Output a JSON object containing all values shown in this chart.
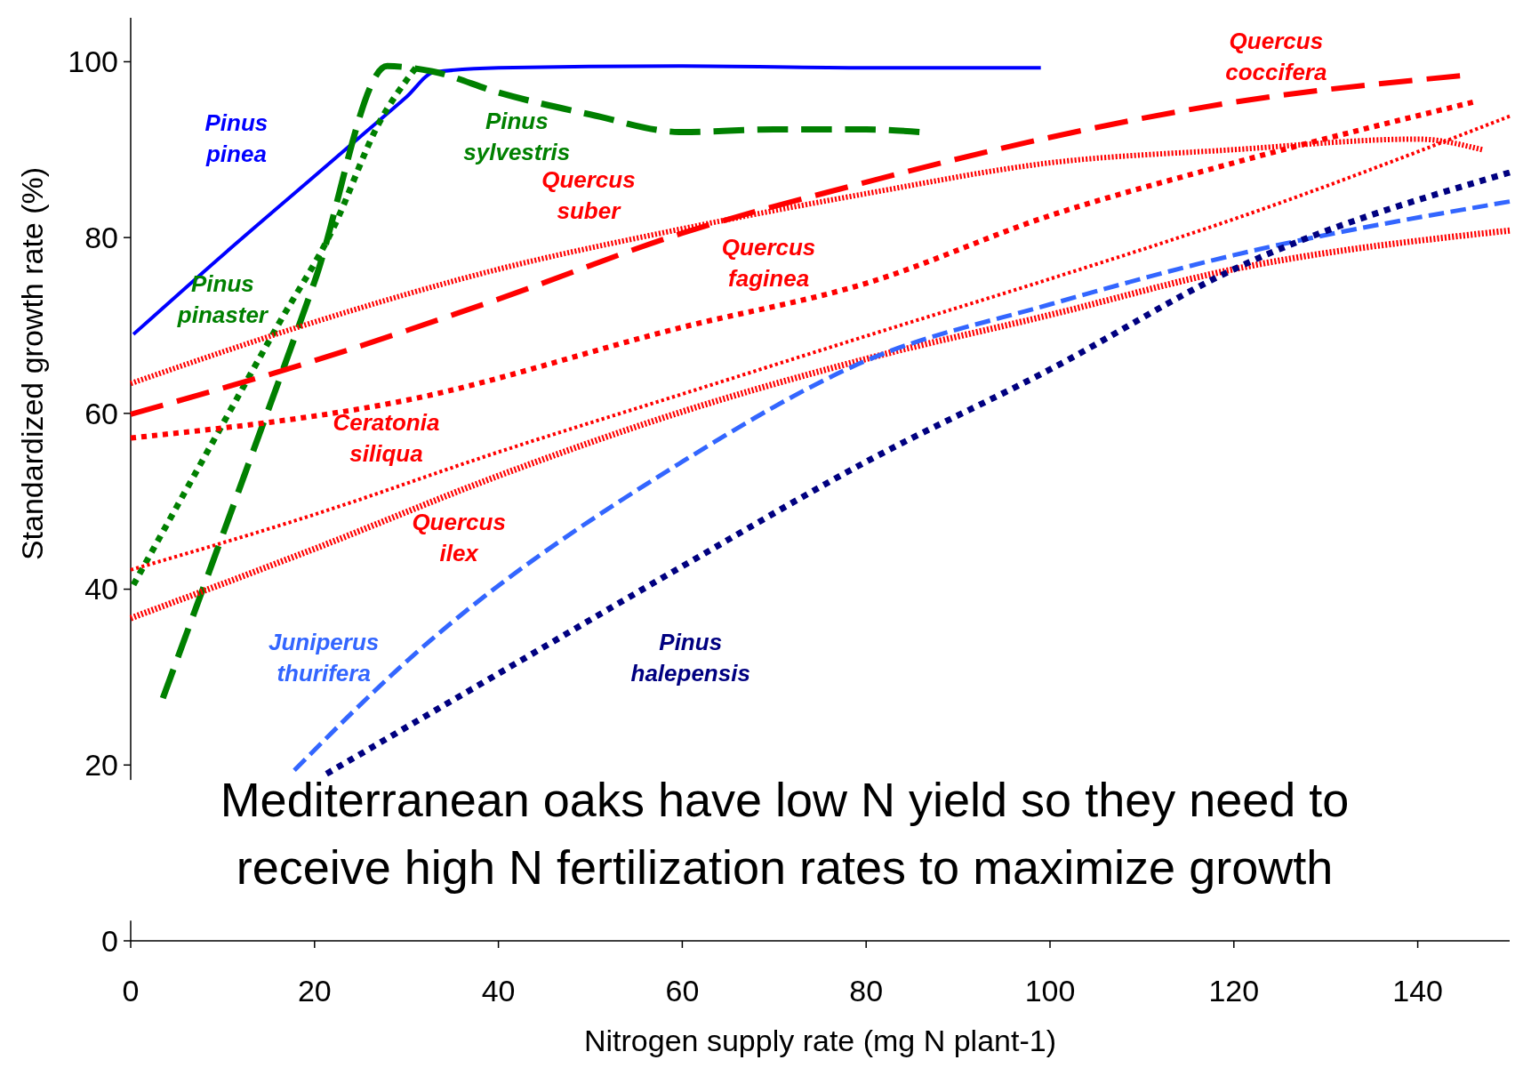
{
  "chart_data": {
    "type": "line",
    "xlabel": "Nitrogen supply rate (mg N plant-1)",
    "ylabel": "Standardized growth rate (%)",
    "xlim": [
      0,
      150
    ],
    "ylim": [
      0,
      105
    ],
    "xticks": [
      0,
      20,
      40,
      60,
      80,
      100,
      120,
      140
    ],
    "yticks": [
      0,
      20,
      40,
      60,
      80,
      100
    ],
    "grid": false,
    "legend": false,
    "marker": "none",
    "annotations": [
      "Mediterranean oaks have low N yield so they need to receive high N fertilization rates to maximize growth"
    ],
    "series": [
      {
        "name": "Pinus pinea",
        "color": "#0000ff",
        "line_style": "solid",
        "x": [
          0.3,
          10,
          20,
          25,
          30,
          33,
          40,
          60,
          80,
          99
        ],
        "values": [
          69,
          78,
          87,
          91.5,
          96,
          98.8,
          99.3,
          99.5,
          99.3,
          99.3
        ]
      },
      {
        "name": "Pinus sylvestris",
        "color": "#008000",
        "line_style": "dashed",
        "x": [
          3.5,
          12.9,
          20,
          27.9,
          32.8,
          40,
          50,
          60,
          70,
          80,
          85.8
        ],
        "values": [
          27.6,
          54.5,
          75,
          99.5,
          98.9,
          96.5,
          94,
          92,
          92.3,
          92.3,
          92
        ]
      },
      {
        "name": "Pinus pinaster",
        "color": "#008000",
        "line_style": "dotted",
        "x": [
          0.3,
          8,
          16,
          22,
          27,
          31
        ],
        "values": [
          40.5,
          55,
          70,
          81,
          93,
          99.3
        ]
      },
      {
        "name": "Quercus coccifera",
        "color": "#ff0000",
        "line_style": "dashed",
        "x": [
          0,
          20,
          40,
          60,
          80,
          100,
          120,
          144.6
        ],
        "values": [
          59.9,
          66,
          73,
          80.5,
          86.3,
          91.4,
          95.4,
          98.4
        ]
      },
      {
        "name": "Quercus suber",
        "color": "#ff0000",
        "line_style": "dotted",
        "x": [
          0,
          20,
          40,
          60,
          80,
          100,
          120,
          140,
          147
        ],
        "values": [
          63.4,
          70.4,
          76.4,
          81,
          85,
          88.5,
          90,
          91.2,
          90
        ]
      },
      {
        "name": "Quercus faginea",
        "color": "#ff0000",
        "line_style": "dotted",
        "x": [
          0,
          30,
          60,
          80,
          100,
          120,
          146
        ],
        "values": [
          57.2,
          61.5,
          69.8,
          74.8,
          82.5,
          88.5,
          95.4
        ]
      },
      {
        "name": "Ceratonia siliqua",
        "color": "#ff0000",
        "line_style": "dotted",
        "x": [
          0,
          20,
          40,
          60,
          80,
          100,
          120,
          150
        ],
        "values": [
          42.2,
          48.5,
          55.6,
          62.2,
          68.8,
          75.3,
          82.1,
          93.8
        ]
      },
      {
        "name": "Quercus ilex",
        "color": "#ff0000",
        "line_style": "dotted",
        "x": [
          0,
          20,
          40,
          60,
          80,
          100,
          120,
          150
        ],
        "values": [
          36.7,
          44.6,
          52.9,
          60.2,
          66.2,
          71.2,
          76.4,
          80.8
        ]
      },
      {
        "name": "Juniperus thurifera",
        "color": "#3366ff",
        "line_style": "dashed",
        "x": [
          17.8,
          29.7,
          60,
          80,
          100,
          120,
          150
        ],
        "values": [
          19.4,
          31.5,
          54.5,
          66,
          72.4,
          78,
          84.1
        ]
      },
      {
        "name": "Pinus halepensis",
        "color": "#000080",
        "line_style": "dotted",
        "x": [
          21.3,
          40,
          60,
          80,
          100,
          120,
          150
        ],
        "values": [
          19,
          30.4,
          42.6,
          54.5,
          65,
          76.4,
          87.4
        ]
      }
    ]
  }
}
